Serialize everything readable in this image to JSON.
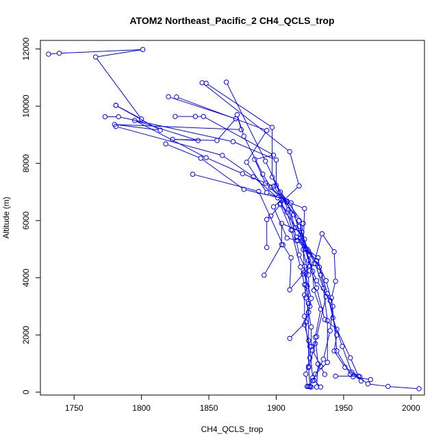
{
  "chart_data": {
    "type": "line",
    "title": "ATOM2 Northeast_Pacific_2 CH4_QCLS_trop",
    "xlabel": "CH4_QCLS_trop",
    "ylabel": "Altitude (m)",
    "xlim": [
      1725,
      2010
    ],
    "ylim": [
      -100,
      12300
    ],
    "xticks": [
      1750,
      1800,
      1850,
      1900,
      1950,
      2000
    ],
    "yticks": [
      0,
      2000,
      4000,
      6000,
      8000,
      10000,
      12000
    ],
    "grid": false,
    "legend": "none",
    "series_style": {
      "color": "#0000ff",
      "marker": "open-circle",
      "line": "connected"
    },
    "series": [
      {
        "points": [
          [
            1731,
            11820
          ],
          [
            1739,
            11850
          ],
          [
            1801,
            11980
          ],
          [
            1766,
            11720
          ],
          [
            1800,
            9550
          ],
          [
            1781,
            10030
          ]
        ]
      },
      {
        "points": [
          [
            1781,
            10030
          ],
          [
            1814,
            9160
          ],
          [
            1780,
            9360
          ],
          [
            1874,
            9180
          ],
          [
            1871,
            9700
          ],
          [
            1876,
            8950
          ],
          [
            1890,
            7620
          ],
          [
            1896,
            7160
          ],
          [
            1908,
            6650
          ],
          [
            1914,
            5750
          ],
          [
            1921,
            5350
          ],
          [
            1925,
            4400
          ],
          [
            1930,
            3640
          ],
          [
            1936,
            2540
          ],
          [
            1945,
            2200
          ],
          [
            1955,
            1200
          ],
          [
            1961,
            560
          ],
          [
            1944,
            560
          ]
        ]
      },
      {
        "points": [
          [
            1820,
            10330
          ],
          [
            1870,
            9560
          ],
          [
            1856,
            8800
          ],
          [
            1823,
            8840
          ],
          [
            1842,
            8800
          ],
          [
            1795,
            9500
          ],
          [
            1848,
            8200
          ],
          [
            1875,
            7640
          ],
          [
            1898,
            7200
          ],
          [
            1917,
            6000
          ],
          [
            1922,
            5000
          ],
          [
            1927,
            4230
          ],
          [
            1928,
            3560
          ],
          [
            1933,
            2900
          ],
          [
            1929,
            1920
          ],
          [
            1931,
            990
          ],
          [
            1930,
            180
          ]
        ]
      },
      {
        "points": [
          [
            1845,
            10820
          ],
          [
            1910,
            8410
          ],
          [
            1917,
            7210
          ],
          [
            1903,
            6600
          ],
          [
            1918,
            5500
          ],
          [
            1924,
            4600
          ],
          [
            1930,
            3900
          ],
          [
            1940,
            3200
          ],
          [
            1942,
            2600
          ],
          [
            1949,
            1600
          ],
          [
            1956,
            700
          ],
          [
            1968,
            290
          ],
          [
            1983,
            200
          ],
          [
            2006,
            120
          ]
        ]
      },
      {
        "points": [
          [
            1863,
            10840
          ],
          [
            1892,
            8080
          ],
          [
            1903,
            7000
          ],
          [
            1913,
            6200
          ],
          [
            1917,
            5800
          ],
          [
            1924,
            4930
          ],
          [
            1932,
            4370
          ],
          [
            1938,
            3440
          ],
          [
            1945,
            2000
          ],
          [
            1943,
            1440
          ],
          [
            1951,
            870
          ],
          [
            1962,
            540
          ],
          [
            1963,
            390
          ]
        ]
      },
      {
        "points": [
          [
            1826,
            10320
          ],
          [
            1893,
            9150
          ],
          [
            1878,
            8040
          ],
          [
            1893,
            6980
          ],
          [
            1911,
            6620
          ],
          [
            1919,
            5300
          ],
          [
            1929,
            4490
          ],
          [
            1935,
            3630
          ],
          [
            1938,
            2500
          ],
          [
            1938,
            1040
          ],
          [
            1929,
            630
          ],
          [
            1928,
            420
          ],
          [
            1933,
            180
          ]
        ]
      },
      {
        "points": [
          [
            1848,
            10800
          ],
          [
            1897,
            9260
          ],
          [
            1897,
            7520
          ],
          [
            1909,
            6370
          ],
          [
            1915,
            5420
          ],
          [
            1930,
            4600
          ],
          [
            1937,
            3900
          ],
          [
            1942,
            3000
          ],
          [
            1940,
            2150
          ],
          [
            1935,
            1150
          ],
          [
            1927,
            400
          ],
          [
            1924,
            200
          ],
          [
            1925,
            190
          ]
        ]
      },
      {
        "points": [
          [
            1825,
            9640
          ],
          [
            1840,
            9640
          ],
          [
            1846,
            9640
          ],
          [
            1898,
            8290
          ],
          [
            1884,
            8140
          ],
          [
            1892,
            7310
          ],
          [
            1905,
            6720
          ],
          [
            1921,
            6420
          ],
          [
            1920,
            4990
          ],
          [
            1921,
            4200
          ],
          [
            1926,
            3280
          ],
          [
            1924,
            2790
          ],
          [
            1924,
            1800
          ],
          [
            1924,
            900
          ],
          [
            1925,
            200
          ],
          [
            1926,
            180
          ]
        ]
      },
      {
        "points": [
          [
            1773,
            9630
          ],
          [
            1783,
            9630
          ],
          [
            1868,
            8760
          ],
          [
            1900,
            8120
          ],
          [
            1900,
            7230
          ],
          [
            1908,
            6680
          ],
          [
            1920,
            5900
          ],
          [
            1918,
            5400
          ],
          [
            1924,
            4100
          ],
          [
            1924,
            3100
          ],
          [
            1921,
            2360
          ],
          [
            1925,
            1600
          ],
          [
            1927,
            500
          ],
          [
            1925,
            200
          ],
          [
            1923,
            200
          ]
        ]
      },
      {
        "points": [
          [
            1781,
            9290
          ],
          [
            1860,
            8280
          ],
          [
            1883,
            7530
          ],
          [
            1901,
            6800
          ],
          [
            1908,
            6290
          ],
          [
            1912,
            5670
          ],
          [
            1915,
            5300
          ],
          [
            1917,
            4800
          ],
          [
            1921,
            4400
          ],
          [
            1922,
            3750
          ],
          [
            1925,
            3000
          ],
          [
            1922,
            2450
          ],
          [
            1910,
            1880
          ]
        ]
      },
      {
        "points": [
          [
            1818,
            8680
          ],
          [
            1844,
            8180
          ],
          [
            1876,
            7090
          ],
          [
            1905,
            6770
          ],
          [
            1898,
            6480
          ],
          [
            1908,
            5390
          ],
          [
            1916,
            5300
          ],
          [
            1925,
            4800
          ],
          [
            1922,
            4140
          ],
          [
            1923,
            3700
          ],
          [
            1921,
            3400
          ],
          [
            1921,
            2650
          ],
          [
            1925,
            1200
          ],
          [
            1922,
            630
          ],
          [
            1923,
            200
          ]
        ]
      },
      {
        "points": [
          [
            1838,
            7620
          ],
          [
            1887,
            7020
          ],
          [
            1905,
            5150
          ],
          [
            1911,
            4700
          ],
          [
            1910,
            3580
          ],
          [
            1920,
            4130
          ],
          [
            1928,
            4500
          ],
          [
            1934,
            5540
          ],
          [
            1943,
            4910
          ],
          [
            1944,
            3880
          ],
          [
            1941,
            3300
          ],
          [
            1945,
            1440
          ],
          [
            1955,
            620
          ],
          [
            1957,
            540
          ],
          [
            1970,
            440
          ]
        ]
      },
      {
        "points": [
          [
            1893,
            5060
          ],
          [
            1893,
            6040
          ],
          [
            1896,
            6160
          ],
          [
            1903,
            6560
          ],
          [
            1911,
            5670
          ],
          [
            1918,
            4380
          ],
          [
            1921,
            3760
          ],
          [
            1922,
            3300
          ],
          [
            1926,
            2280
          ],
          [
            1926,
            1600
          ],
          [
            1929,
            1700
          ],
          [
            1924,
            860
          ]
        ]
      },
      {
        "points": [
          [
            1891,
            4090
          ],
          [
            1904,
            5160
          ],
          [
            1904,
            5900
          ],
          [
            1919,
            5600
          ],
          [
            1923,
            5000
          ],
          [
            1931,
            4700
          ],
          [
            1933,
            4100
          ],
          [
            1937,
            3350
          ],
          [
            1930,
            1940
          ],
          [
            1927,
            1460
          ],
          [
            1933,
            900
          ],
          [
            1936,
            620
          ]
        ]
      }
    ]
  }
}
